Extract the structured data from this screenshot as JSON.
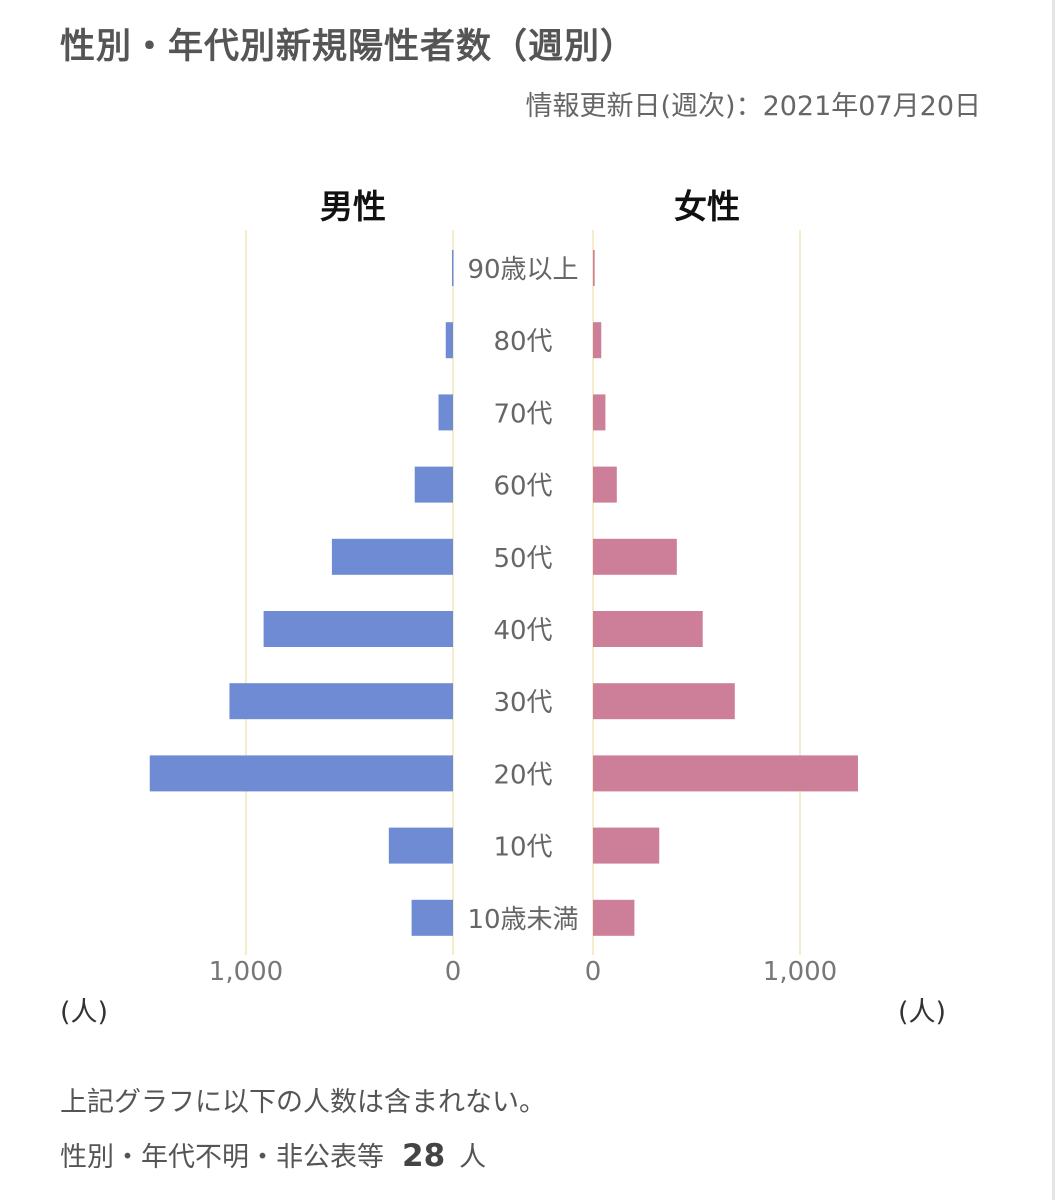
{
  "title": "性別・年代別新規陽性者数（週別）",
  "updated": "情報更新日(週次)：2021年07月20日",
  "male_label": "男性",
  "female_label": "女性",
  "unit_left": "(人)",
  "unit_right": "(人)",
  "note_line1": "上記グラフに以下の人数は含まれない。",
  "note_line2_prefix": "性別・年代不明・非公表等",
  "note_line2_count": "28",
  "note_line2_suffix": "人",
  "colors": {
    "male": "#6e8bd4",
    "female": "#cd7f99",
    "grid": "#f5eccc"
  },
  "chart_data": {
    "type": "bar",
    "orientation": "horizontal-population-pyramid",
    "categories": [
      "90歳以上",
      "80代",
      "70代",
      "60代",
      "50代",
      "40代",
      "30代",
      "20代",
      "10代",
      "10歳未満"
    ],
    "series": [
      {
        "name": "男性",
        "values": [
          5,
          35,
          70,
          185,
          585,
          915,
          1080,
          1465,
          310,
          200
        ]
      },
      {
        "name": "女性",
        "values": [
          8,
          40,
          60,
          115,
          405,
          530,
          685,
          1280,
          320,
          200
        ]
      }
    ],
    "xticks": [
      {
        "value": 1000,
        "label": "1,000"
      },
      {
        "value": 0,
        "label": "0"
      }
    ],
    "xlim": [
      0,
      1500
    ],
    "grid": true
  }
}
